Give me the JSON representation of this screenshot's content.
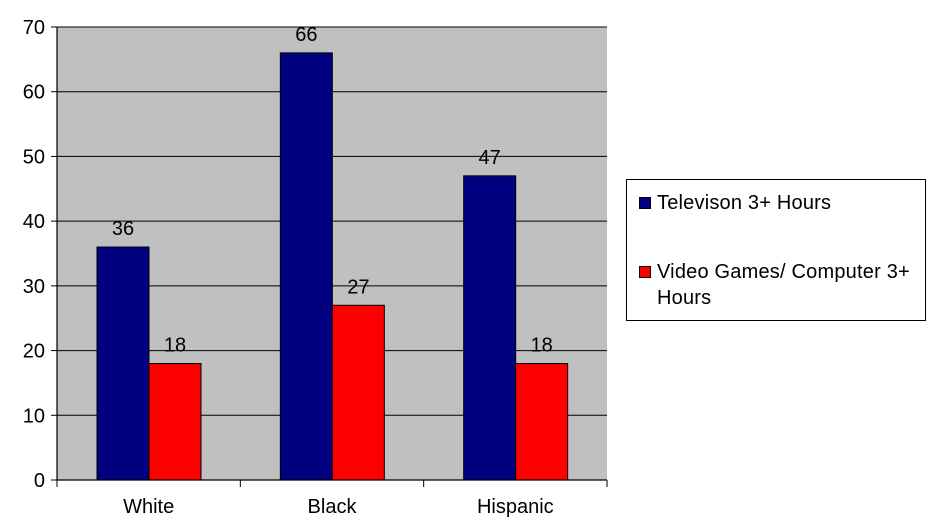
{
  "chart_data": {
    "type": "bar",
    "title": "",
    "xlabel": "",
    "ylabel": "",
    "categories": [
      "White",
      "Black",
      "Hispanic"
    ],
    "series": [
      {
        "name": "Televison 3+ Hours",
        "values": [
          36,
          66,
          47
        ],
        "color": "#000080"
      },
      {
        "name": "Video Games/ Computer 3+ Hours",
        "values": [
          18,
          27,
          18
        ],
        "color": "#ff0000"
      }
    ],
    "ylim": [
      0,
      70
    ],
    "yticks": [
      0,
      10,
      20,
      30,
      40,
      50,
      60,
      70
    ],
    "grid": true,
    "legend_position": "right",
    "plot_background": "#c0c0c0",
    "data_labels": true
  }
}
